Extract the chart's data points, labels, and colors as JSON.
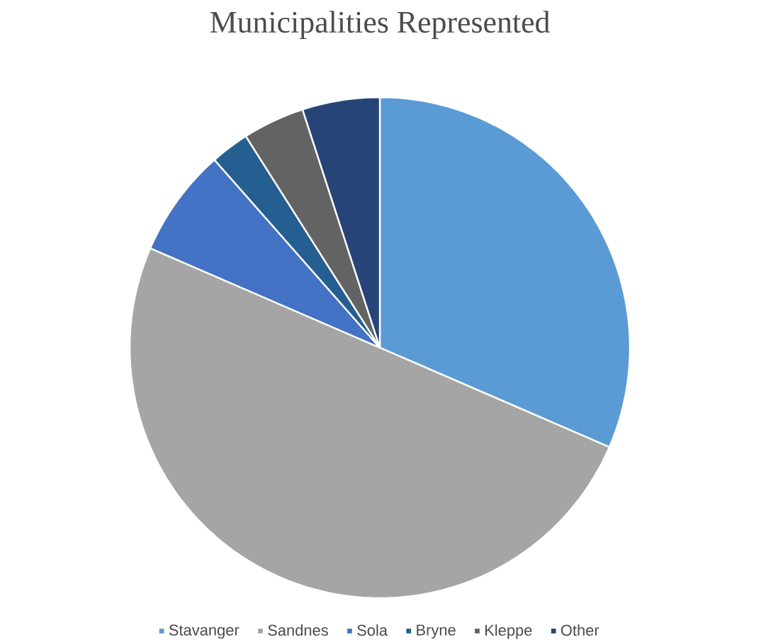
{
  "chart_data": {
    "type": "pie",
    "title": "Municipalities Represented",
    "categories": [
      "Stavanger",
      "Sandnes",
      "Sola",
      "Bryne",
      "Kleppe",
      "Other"
    ],
    "values": [
      31.5,
      50,
      7,
      2.5,
      4,
      5
    ],
    "colors": [
      "#5b9bd5",
      "#a5a5a5",
      "#4472c4",
      "#255e91",
      "#636363",
      "#264478"
    ],
    "legend": "bottom"
  }
}
